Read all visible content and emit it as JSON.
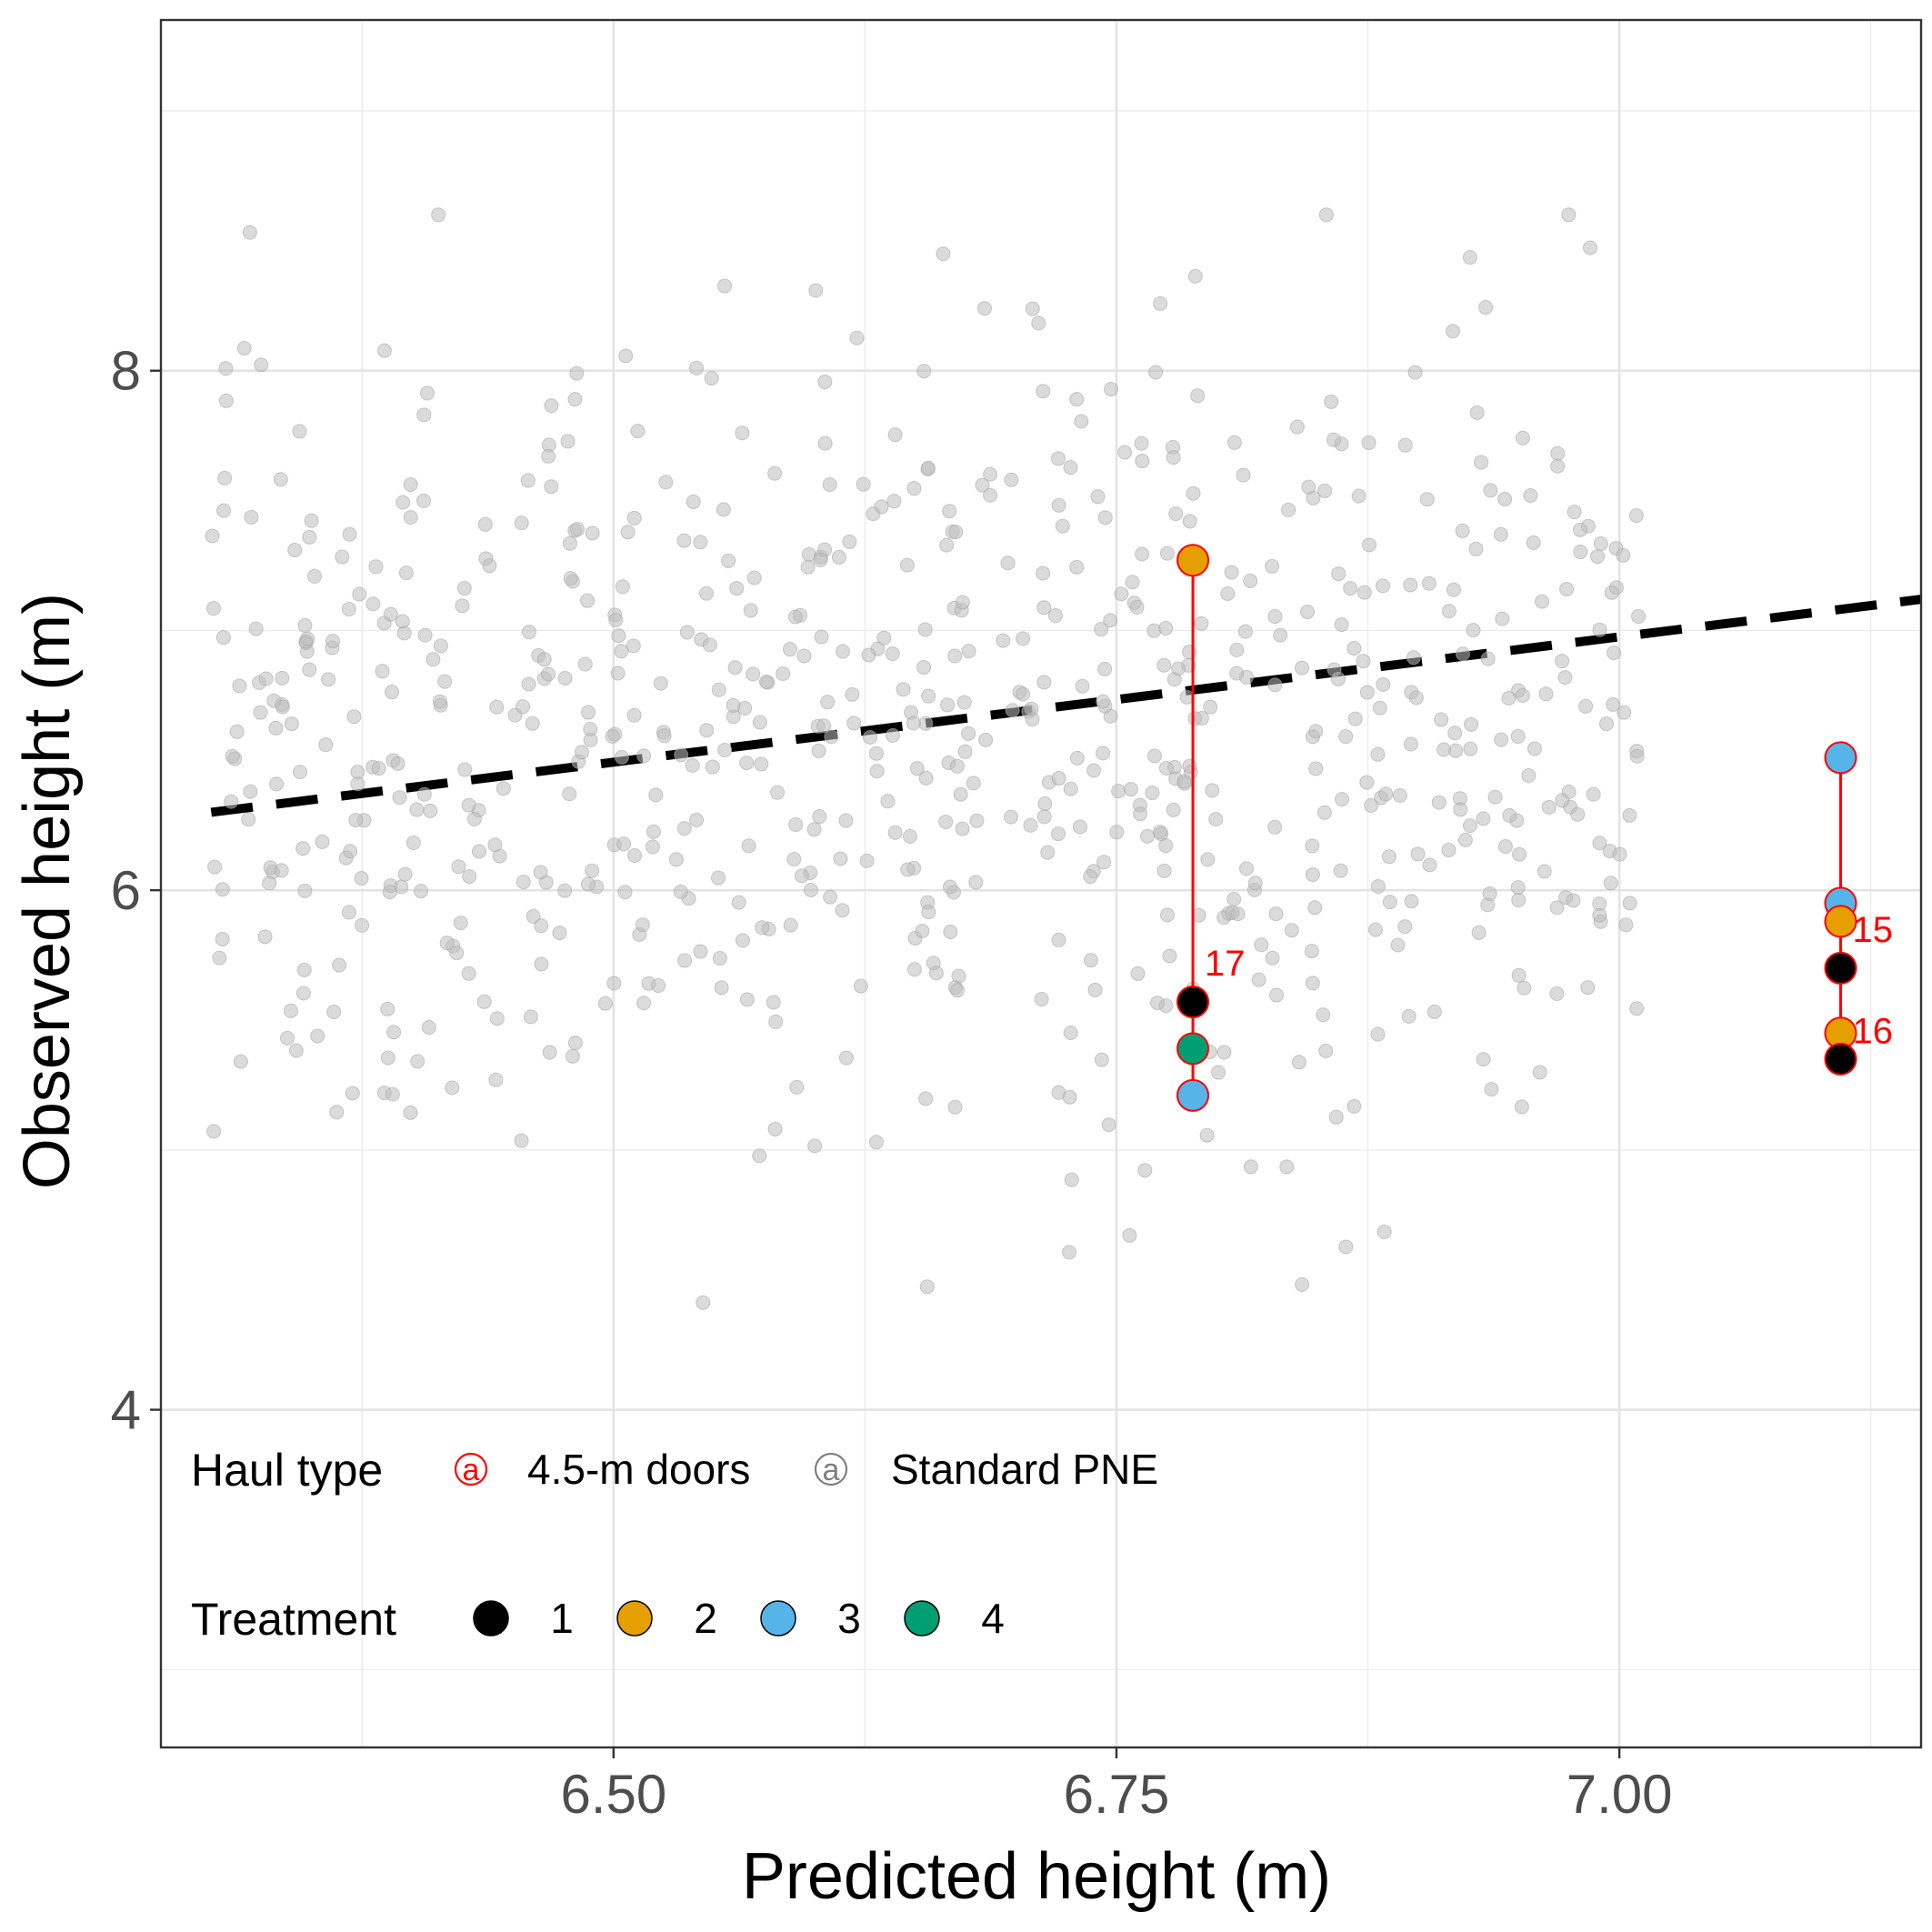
{
  "chart_data": {
    "type": "scatter",
    "title": "",
    "xlabel": "Predicted height (m)",
    "ylabel": "Observed height (m)",
    "xlim": [
      6.275,
      7.15
    ],
    "ylim": [
      2.7,
      9.35
    ],
    "x_ticks": [
      6.5,
      6.75,
      7.0
    ],
    "x_tick_labels": [
      "6.50",
      "6.75",
      "7.00"
    ],
    "y_ticks": [
      4,
      6,
      8
    ],
    "y_tick_labels": [
      "4",
      "6",
      "8"
    ],
    "grid": true,
    "legend_placement": "bottom-left (inside plot)",
    "colors": {
      "standard": "#bdbdbd",
      "doors": "#ff0000",
      "fit_line": "#000000",
      "treatment_1": "#000000",
      "treatment_2": "#e69f00",
      "treatment_3": "#56b4e9",
      "treatment_4": "#009e73"
    },
    "fit_line": {
      "style": "dashed",
      "x": [
        6.3,
        7.15
      ],
      "y": [
        6.3,
        7.12
      ]
    },
    "standard_seed": 20240601,
    "standard_count": 750,
    "standard_x_range": [
      6.3,
      7.01
    ],
    "standard_y_center": 6.6,
    "standard_y_spread": 0.75,
    "highlighted_hauls": [
      {
        "haul": "17",
        "x": 6.788,
        "points": [
          {
            "treatment": "2",
            "y": 7.27
          },
          {
            "treatment": "1",
            "y": 5.57
          },
          {
            "treatment": "4",
            "y": 5.39
          },
          {
            "treatment": "3",
            "y": 5.21
          }
        ],
        "label_y": 5.72
      },
      {
        "haul": "15",
        "x": 7.11,
        "points": [
          {
            "treatment": "3",
            "y": 6.51
          },
          {
            "treatment": "3",
            "y": 5.95
          },
          {
            "treatment": "2",
            "y": 5.88
          }
        ],
        "label_y": 5.85
      },
      {
        "haul": "16",
        "x": 7.11,
        "points": [
          {
            "treatment": "1",
            "y": 5.7
          },
          {
            "treatment": "2",
            "y": 5.45
          },
          {
            "treatment": "1",
            "y": 5.35
          }
        ],
        "label_y": 5.46
      }
    ],
    "legends": {
      "haul_type": {
        "title": "Haul type",
        "glyph": "a",
        "items": [
          {
            "label": "4.5-m doors",
            "color": "#ff0000"
          },
          {
            "label": "Standard PNE",
            "color": "#7f7f7f"
          }
        ]
      },
      "treatment": {
        "title": "Treatment",
        "items": [
          {
            "label": "1",
            "color": "#000000"
          },
          {
            "label": "2",
            "color": "#e69f00"
          },
          {
            "label": "3",
            "color": "#56b4e9"
          },
          {
            "label": "4",
            "color": "#009e73"
          }
        ]
      }
    }
  }
}
